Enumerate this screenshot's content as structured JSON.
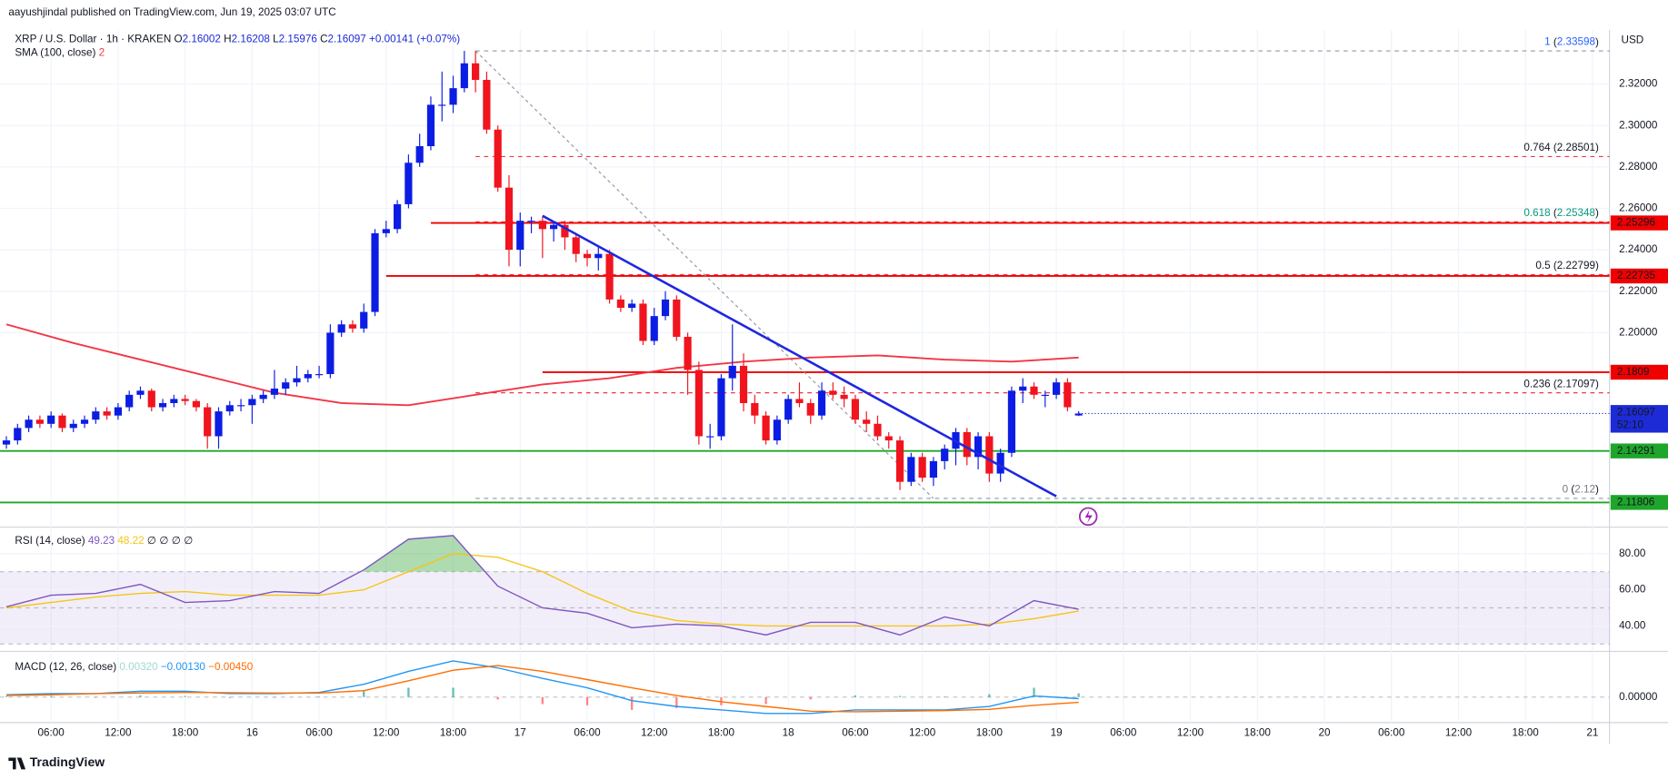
{
  "header": {
    "published": "aayushjindal published on TradingView.com, Jun 19, 2025 03:07 UTC",
    "brand": "TradingView"
  },
  "chart_data": [
    {
      "type": "candlestick",
      "title": "XRP / U.S. Dollar · 1h · KRAKEN",
      "currency": "USD",
      "ohlc_prefixes": [
        "O",
        "H",
        "L",
        "C"
      ],
      "change": "+0.00141",
      "change_pct": "(+0.07%)",
      "up_color": "#0c1de3",
      "down_color": "#f0141e",
      "candles": [
        [
          2.146,
          2.15,
          2.144,
          2.148
        ],
        [
          2.148,
          2.156,
          2.146,
          2.154
        ],
        [
          2.154,
          2.16,
          2.152,
          2.158
        ],
        [
          2.158,
          2.16,
          2.154,
          2.156
        ],
        [
          2.156,
          2.162,
          2.154,
          2.16
        ],
        [
          2.16,
          2.161,
          2.152,
          2.154
        ],
        [
          2.154,
          2.158,
          2.152,
          2.156
        ],
        [
          2.156,
          2.16,
          2.154,
          2.158
        ],
        [
          2.158,
          2.164,
          2.156,
          2.162
        ],
        [
          2.162,
          2.164,
          2.158,
          2.16
        ],
        [
          2.16,
          2.166,
          2.158,
          2.164
        ],
        [
          2.164,
          2.172,
          2.162,
          2.17
        ],
        [
          2.17,
          2.174,
          2.168,
          2.172
        ],
        [
          2.172,
          2.173,
          2.162,
          2.164
        ],
        [
          2.164,
          2.168,
          2.162,
          2.166
        ],
        [
          2.166,
          2.17,
          2.164,
          2.168
        ],
        [
          2.168,
          2.17,
          2.165,
          2.167
        ],
        [
          2.167,
          2.168,
          2.162,
          2.164
        ],
        [
          2.164,
          2.166,
          2.144,
          2.15
        ],
        [
          2.15,
          2.164,
          2.144,
          2.162
        ],
        [
          2.162,
          2.167,
          2.16,
          2.165
        ],
        [
          2.165,
          2.168,
          2.162,
          2.165
        ],
        [
          2.165,
          2.17,
          2.156,
          2.168
        ],
        [
          2.168,
          2.172,
          2.166,
          2.17
        ],
        [
          2.17,
          2.182,
          2.168,
          2.173
        ],
        [
          2.173,
          2.178,
          2.17,
          2.176
        ],
        [
          2.176,
          2.184,
          2.174,
          2.178
        ],
        [
          2.178,
          2.182,
          2.176,
          2.18
        ],
        [
          2.18,
          2.184,
          2.178,
          2.18
        ],
        [
          2.18,
          2.204,
          2.178,
          2.2
        ],
        [
          2.2,
          2.206,
          2.198,
          2.204
        ],
        [
          2.204,
          2.206,
          2.2,
          2.202
        ],
        [
          2.202,
          2.214,
          2.2,
          2.21
        ],
        [
          2.21,
          2.25,
          2.208,
          2.248
        ],
        [
          2.248,
          2.254,
          2.246,
          2.25
        ],
        [
          2.25,
          2.264,
          2.248,
          2.262
        ],
        [
          2.262,
          2.286,
          2.26,
          2.282
        ],
        [
          2.282,
          2.296,
          2.28,
          2.29
        ],
        [
          2.29,
          2.314,
          2.288,
          2.31
        ],
        [
          2.31,
          2.326,
          2.302,
          2.31
        ],
        [
          2.31,
          2.324,
          2.306,
          2.318
        ],
        [
          2.318,
          2.336,
          2.316,
          2.33
        ],
        [
          2.33,
          2.336,
          2.316,
          2.322
        ],
        [
          2.322,
          2.326,
          2.296,
          2.298
        ],
        [
          2.298,
          2.3,
          2.268,
          2.27
        ],
        [
          2.27,
          2.276,
          2.232,
          2.24
        ],
        [
          2.24,
          2.258,
          2.232,
          2.254
        ],
        [
          2.254,
          2.256,
          2.248,
          2.254
        ],
        [
          2.254,
          2.256,
          2.236,
          2.25
        ],
        [
          2.25,
          2.254,
          2.244,
          2.252
        ],
        [
          2.252,
          2.254,
          2.24,
          2.246
        ],
        [
          2.246,
          2.248,
          2.234,
          2.238
        ],
        [
          2.238,
          2.24,
          2.232,
          2.236
        ],
        [
          2.236,
          2.242,
          2.23,
          2.238
        ],
        [
          2.238,
          2.24,
          2.214,
          2.216
        ],
        [
          2.216,
          2.218,
          2.21,
          2.212
        ],
        [
          2.212,
          2.216,
          2.21,
          2.214
        ],
        [
          2.214,
          2.216,
          2.194,
          2.196
        ],
        [
          2.196,
          2.212,
          2.194,
          2.208
        ],
        [
          2.208,
          2.22,
          2.206,
          2.216
        ],
        [
          2.216,
          2.218,
          2.196,
          2.198
        ],
        [
          2.198,
          2.2,
          2.17,
          2.182
        ],
        [
          2.182,
          2.186,
          2.146,
          2.15
        ],
        [
          2.15,
          2.156,
          2.144,
          2.15
        ],
        [
          2.15,
          2.18,
          2.148,
          2.178
        ],
        [
          2.178,
          2.204,
          2.172,
          2.184
        ],
        [
          2.184,
          2.19,
          2.162,
          2.166
        ],
        [
          2.166,
          2.17,
          2.156,
          2.16
        ],
        [
          2.16,
          2.162,
          2.146,
          2.148
        ],
        [
          2.148,
          2.16,
          2.146,
          2.158
        ],
        [
          2.158,
          2.17,
          2.156,
          2.168
        ],
        [
          2.168,
          2.176,
          2.164,
          2.166
        ],
        [
          2.166,
          2.168,
          2.156,
          2.16
        ],
        [
          2.16,
          2.176,
          2.158,
          2.172
        ],
        [
          2.172,
          2.176,
          2.168,
          2.17
        ],
        [
          2.17,
          2.174,
          2.164,
          2.168
        ],
        [
          2.168,
          2.17,
          2.156,
          2.158
        ],
        [
          2.158,
          2.162,
          2.152,
          2.156
        ],
        [
          2.156,
          2.16,
          2.148,
          2.15
        ],
        [
          2.15,
          2.152,
          2.144,
          2.148
        ],
        [
          2.148,
          2.15,
          2.124,
          2.128
        ],
        [
          2.128,
          2.142,
          2.126,
          2.14
        ],
        [
          2.14,
          2.142,
          2.128,
          2.13
        ],
        [
          2.13,
          2.14,
          2.126,
          2.138
        ],
        [
          2.138,
          2.146,
          2.134,
          2.144
        ],
        [
          2.144,
          2.154,
          2.136,
          2.152
        ],
        [
          2.152,
          2.154,
          2.136,
          2.14
        ],
        [
          2.14,
          2.152,
          2.134,
          2.15
        ],
        [
          2.15,
          2.152,
          2.128,
          2.132
        ],
        [
          2.132,
          2.144,
          2.128,
          2.142
        ],
        [
          2.142,
          2.174,
          2.14,
          2.172
        ],
        [
          2.172,
          2.178,
          2.166,
          2.174
        ],
        [
          2.174,
          2.176,
          2.168,
          2.17
        ],
        [
          2.17,
          2.172,
          2.164,
          2.17
        ],
        [
          2.17,
          2.178,
          2.168,
          2.176
        ],
        [
          2.176,
          2.178,
          2.162,
          2.164
        ],
        [
          2.16002,
          2.16208,
          2.15976,
          2.16097
        ]
      ],
      "ylim": [
        2.10667,
        2.34513
      ],
      "yticks": [
        {
          "value": 2.32,
          "label": "2.32000"
        },
        {
          "value": 2.3,
          "label": "2.30000"
        },
        {
          "value": 2.28,
          "label": "2.28000"
        },
        {
          "value": 2.26,
          "label": "2.26000"
        },
        {
          "value": 2.24,
          "label": "2.24000"
        },
        {
          "value": 2.22,
          "label": "2.22000"
        },
        {
          "value": 2.2,
          "label": "2.20000"
        }
      ],
      "xticks": [
        "06:00",
        "12:00",
        "18:00",
        "16",
        "06:00",
        "12:00",
        "18:00",
        "17",
        "06:00",
        "12:00",
        "18:00",
        "18",
        "06:00",
        "12:00",
        "18:00",
        "19",
        "06:00",
        "12:00",
        "18:00",
        "20",
        "06:00",
        "12:00",
        "18:00",
        "21"
      ],
      "sma": {
        "name": "SMA (100, close)",
        "value_label": "2",
        "color": "#f23645",
        "values": [
          2.204,
          2.195,
          2.187,
          2.179,
          2.171,
          2.166,
          2.165,
          2.17,
          2.175,
          2.178,
          2.183,
          2.186,
          2.188,
          2.189,
          2.187,
          2.186,
          2.188
        ]
      },
      "fib_levels": [
        {
          "ratio": 1,
          "value": 2.33598,
          "color": "#9598a1",
          "label_color": "#2962ff"
        },
        {
          "ratio": 0.764,
          "value": 2.28501,
          "color": "#f23645",
          "label_color": "#131722"
        },
        {
          "ratio": 0.618,
          "value": 2.25348,
          "color": "#f23645",
          "label_color": "#089981"
        },
        {
          "ratio": 0.5,
          "value": 2.22799,
          "color": "#f23645",
          "label_color": "#131722"
        },
        {
          "ratio": 0.236,
          "value": 2.17097,
          "color": "#f23645",
          "label_color": "#131722"
        },
        {
          "ratio": 0,
          "value": 2.12,
          "color": "#9598a1",
          "label_color": "#787b86"
        }
      ],
      "lines": [
        {
          "value": 2.25296,
          "color": "#f00000"
        },
        {
          "value": 2.22735,
          "color": "#f00000"
        },
        {
          "value": 2.1809,
          "color": "#f00000"
        },
        {
          "value": 2.14291,
          "color": "#1ea62a"
        },
        {
          "value": 2.11806,
          "color": "#1ea62a"
        }
      ],
      "countdown": "52:10",
      "price_tag_color": "#1c2bd6",
      "trendline": {
        "color": "#1f27e0",
        "values": [
          2.2564,
          2.121
        ]
      }
    },
    {
      "type": "line",
      "title": "RSI (14, close)",
      "extra": "∅ ∅ ∅ ∅",
      "ylim": [
        25.9,
        94.1
      ],
      "yticks": [
        {
          "value": 80,
          "label": "80.00"
        },
        {
          "value": 60,
          "label": "60.00"
        },
        {
          "value": 40,
          "label": "40.00"
        }
      ],
      "band": [
        30,
        70
      ],
      "mid": 50,
      "band_color": "#7e57c2",
      "overbought_color": "#4caf50",
      "series": [
        {
          "color": "#7e57c2",
          "values": [
            50.6,
            57,
            58,
            63,
            53,
            54,
            59,
            58,
            71,
            88,
            90,
            62,
            50,
            47,
            39,
            41,
            40,
            35,
            42,
            42,
            35,
            45,
            40,
            54,
            49.23
          ]
        },
        {
          "color": "#f5c518",
          "values": [
            50,
            53,
            56,
            58,
            59,
            57,
            57,
            57,
            60,
            70,
            80,
            78,
            70,
            58,
            48,
            43,
            41,
            40,
            40,
            40,
            40,
            40,
            41,
            44,
            48.22
          ]
        }
      ]
    },
    {
      "type": "macd",
      "title": "MACD (12, 26, close)",
      "ylim": [
        -0.0218,
        0.0391
      ],
      "yticks": [
        {
          "value": 0,
          "label": "0.00000"
        }
      ],
      "histogram": {
        "up_color": "#26a69a",
        "down_color": "#ff5252",
        "legend_color": "#9fd9d3",
        "legend_value": "0.00320",
        "values": [
          0.0006,
          0.001,
          0,
          0.0015,
          0.001,
          -0.0008,
          -0.0005,
          0.0005,
          0.0055,
          0.008,
          0.008,
          -0.002,
          -0.006,
          -0.007,
          -0.011,
          -0.0094,
          -0.007,
          -0.006,
          -0.002,
          0.0015,
          0.001,
          0.0005,
          0.0025,
          0.008,
          0.0032
        ]
      },
      "series": [
        {
          "color": "#2196f3",
          "legend_value": "−0.00130",
          "values": [
            0.002,
            0.003,
            0.003,
            0.005,
            0.005,
            0.003,
            0.003,
            0.004,
            0.011,
            0.022,
            0.031,
            0.025,
            0.016,
            0.008,
            -0.003,
            -0.008,
            -0.011,
            -0.014,
            -0.014,
            -0.011,
            -0.011,
            -0.011,
            -0.008,
            0.001,
            -0.0013
          ]
        },
        {
          "color": "#ff6d00",
          "legend_value": "−0.00450",
          "values": [
            0.0014,
            0.002,
            0.003,
            0.0035,
            0.004,
            0.0038,
            0.0035,
            0.0035,
            0.0055,
            0.014,
            0.023,
            0.027,
            0.022,
            0.015,
            0.008,
            0.0014,
            -0.004,
            -0.008,
            -0.012,
            -0.0125,
            -0.012,
            -0.0115,
            -0.0105,
            -0.007,
            -0.0045
          ]
        }
      ]
    }
  ]
}
